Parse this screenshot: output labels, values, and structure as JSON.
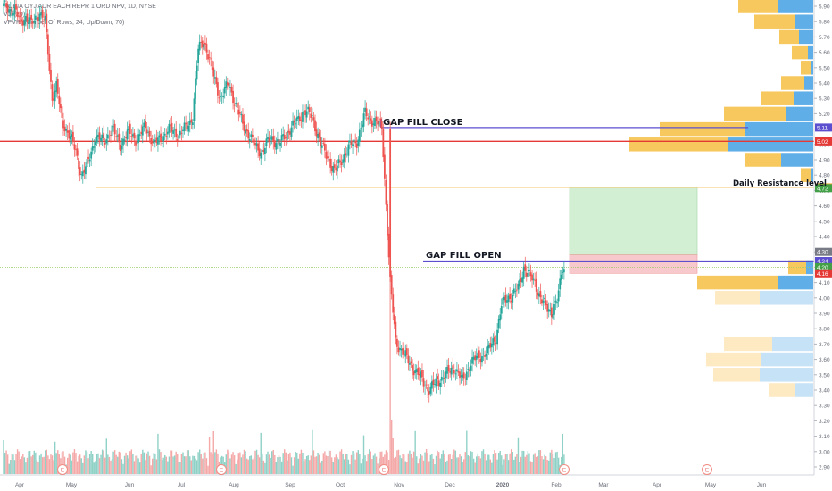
{
  "header": {
    "title": "NOKIA OYJ ADR EACH REPR 1 ORD NPV, 1D, NYSE",
    "volume_label": "Vol (20)",
    "vpvr_label": "VPVR (Number Of Rows, 24, Up/Down, 70)"
  },
  "colors": {
    "up": "#26a69a",
    "down": "#ef5350",
    "vol_up": "#8fd1c6",
    "vol_down": "#f4a9a8",
    "vp_up": "#5faee8",
    "vp_down": "#f7c85e",
    "vp_up_light": "#c6e2f6",
    "vp_down_light": "#fde9c2"
  },
  "annotations": {
    "gap_close": "GAP FILL CLOSE",
    "gap_open": "GAP FILL OPEN",
    "resistance": "Daily Resistance level"
  },
  "chart_data": {
    "type": "candlestick",
    "title": "NOKIA OYJ ADR EACH REPR 1 ORD NPV, 1D, NYSE",
    "y_axis": {
      "range": [
        2.86,
        5.96
      ],
      "ticks": [
        "5.90",
        "5.80",
        "5.70",
        "5.60",
        "5.50",
        "5.40",
        "5.30",
        "5.20",
        "5.10",
        "5.00",
        "4.90",
        "4.80",
        "4.70",
        "4.60",
        "4.50",
        "4.40",
        "4.30",
        "4.20",
        "4.10",
        "4.00",
        "3.90",
        "3.80",
        "3.70",
        "3.60",
        "3.50",
        "3.40",
        "3.30",
        "3.20",
        "3.10",
        "3.00",
        "2.90"
      ]
    },
    "x_axis": {
      "labels": [
        "Apr",
        "May",
        "Jun",
        "Jul",
        "Aug",
        "Sep",
        "Oct",
        "Nov",
        "Dec",
        "2020",
        "Feb",
        "Mar",
        "Apr",
        "May",
        "Jun"
      ]
    },
    "price_labels": [
      {
        "text": "5.11",
        "value": 5.11,
        "color": "#5b4fcf"
      },
      {
        "text": "5.02",
        "value": 5.02,
        "color": "#e53935"
      },
      {
        "text": "4.72",
        "value": 4.72,
        "color": "#f5a623"
      },
      {
        "text": "4.72",
        "value": 4.715,
        "color": "#43a047"
      },
      {
        "text": "4.30",
        "value": 4.3,
        "color": "#787b86"
      },
      {
        "text": "4.24",
        "value": 4.24,
        "color": "#5b4fcf"
      },
      {
        "text": "4.20",
        "value": 4.2,
        "color": "#43a047"
      },
      {
        "text": "4.16",
        "value": 4.16,
        "color": "#e53935"
      }
    ],
    "levels": {
      "gap_close": 5.11,
      "red_line": 5.02,
      "resistance": 4.72,
      "gap_open": 4.24,
      "green_dotted": 4.2
    },
    "range_box": {
      "top": 4.72,
      "mid": 4.28,
      "bottom": 4.16
    },
    "earnings_markers": [
      "E",
      "E",
      "E",
      "E",
      "E"
    ],
    "anchors": [
      [
        0,
        5.9
      ],
      [
        8,
        5.87
      ],
      [
        12,
        5.8
      ],
      [
        16,
        5.83
      ],
      [
        20,
        5.78
      ],
      [
        26,
        5.86
      ],
      [
        30,
        5.8
      ],
      [
        35,
        5.3
      ],
      [
        38,
        5.38
      ],
      [
        42,
        5.15
      ],
      [
        48,
        5.05
      ],
      [
        52,
        4.95
      ],
      [
        56,
        4.8
      ],
      [
        60,
        4.86
      ],
      [
        66,
        5.05
      ],
      [
        72,
        5.02
      ],
      [
        78,
        5.1
      ],
      [
        84,
        5.0
      ],
      [
        90,
        5.08
      ],
      [
        96,
        5.03
      ],
      [
        102,
        5.12
      ],
      [
        108,
        5.0
      ],
      [
        114,
        5.05
      ],
      [
        120,
        5.1
      ],
      [
        126,
        5.06
      ],
      [
        132,
        5.12
      ],
      [
        136,
        5.18
      ],
      [
        140,
        5.62
      ],
      [
        144,
        5.68
      ],
      [
        150,
        5.48
      ],
      [
        156,
        5.3
      ],
      [
        162,
        5.4
      ],
      [
        168,
        5.22
      ],
      [
        174,
        5.1
      ],
      [
        180,
        5.0
      ],
      [
        186,
        4.95
      ],
      [
        192,
        5.05
      ],
      [
        198,
        5.0
      ],
      [
        204,
        5.08
      ],
      [
        210,
        5.14
      ],
      [
        216,
        5.22
      ],
      [
        222,
        5.18
      ],
      [
        228,
        5.0
      ],
      [
        234,
        4.9
      ],
      [
        238,
        4.82
      ],
      [
        244,
        4.92
      ],
      [
        250,
        5.0
      ],
      [
        254,
        5.02
      ],
      [
        260,
        5.2
      ],
      [
        266,
        5.15
      ],
      [
        272,
        5.12
      ],
      [
        278,
        4.1
      ],
      [
        282,
        3.72
      ],
      [
        288,
        3.63
      ],
      [
        294,
        3.55
      ],
      [
        300,
        3.48
      ],
      [
        306,
        3.4
      ],
      [
        312,
        3.46
      ],
      [
        318,
        3.5
      ],
      [
        324,
        3.55
      ],
      [
        330,
        3.46
      ],
      [
        336,
        3.58
      ],
      [
        342,
        3.62
      ],
      [
        348,
        3.65
      ],
      [
        354,
        3.75
      ],
      [
        358,
        3.95
      ],
      [
        362,
        4.0
      ],
      [
        366,
        4.02
      ],
      [
        370,
        4.06
      ],
      [
        374,
        4.2
      ],
      [
        378,
        4.14
      ],
      [
        382,
        4.1
      ],
      [
        386,
        4.0
      ],
      [
        390,
        3.94
      ],
      [
        394,
        3.91
      ],
      [
        398,
        3.98
      ],
      [
        402,
        4.2
      ]
    ],
    "volume_profile": [
      {
        "price": 5.9,
        "up": 40,
        "down": 44
      },
      {
        "price": 5.8,
        "up": 20,
        "down": 46
      },
      {
        "price": 5.7,
        "up": 16,
        "down": 22
      },
      {
        "price": 5.6,
        "up": 6,
        "down": 18
      },
      {
        "price": 5.5,
        "up": 2,
        "down": 12
      },
      {
        "price": 5.4,
        "up": 10,
        "down": 26
      },
      {
        "price": 5.3,
        "up": 22,
        "down": 36
      },
      {
        "price": 5.2,
        "up": 30,
        "down": 70
      },
      {
        "price": 5.1,
        "up": 76,
        "down": 96
      },
      {
        "price": 5.0,
        "up": 96,
        "down": 110
      },
      {
        "price": 4.9,
        "up": 36,
        "down": 40
      },
      {
        "price": 4.8,
        "up": 2,
        "down": 12
      },
      {
        "price": 4.2,
        "up": 8,
        "down": 20
      },
      {
        "price": 4.1,
        "up": 40,
        "down": 90
      },
      {
        "price": 4.0,
        "up": 60,
        "down": 50,
        "faded": true
      },
      {
        "price": 3.7,
        "up": 46,
        "down": 54,
        "faded": true
      },
      {
        "price": 3.6,
        "up": 58,
        "down": 62,
        "faded": true
      },
      {
        "price": 3.5,
        "up": 60,
        "down": 52,
        "faded": true
      },
      {
        "price": 3.4,
        "up": 20,
        "down": 30,
        "faded": true
      }
    ]
  }
}
